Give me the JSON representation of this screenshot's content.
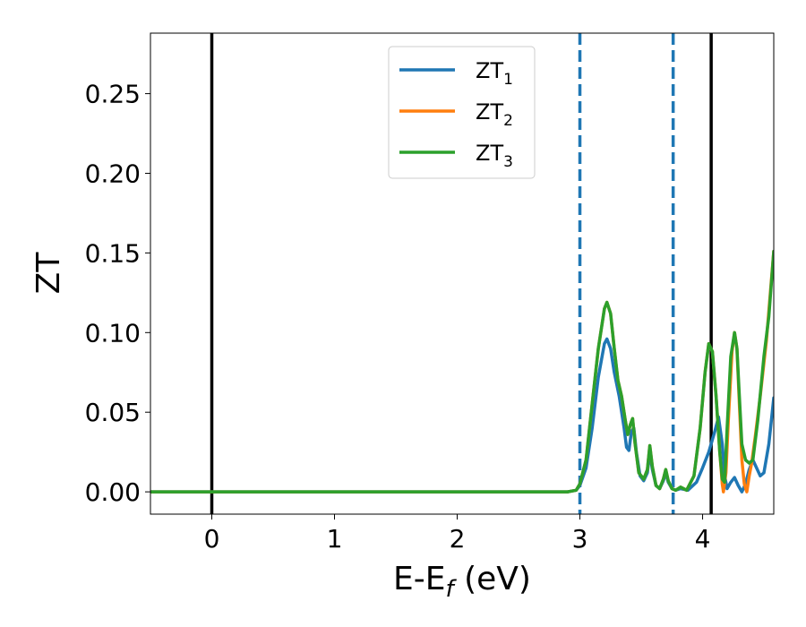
{
  "chart_data": {
    "type": "line",
    "xlabel": "E-E",
    "xlabel_sub": "f",
    "xlabel_unit": " (eV)",
    "ylabel": "ZT",
    "xlim": [
      -0.5,
      4.58
    ],
    "ylim": [
      -0.014,
      0.288
    ],
    "xticks": [
      0,
      1,
      2,
      3,
      4
    ],
    "xtick_labels": [
      "0",
      "1",
      "2",
      "3",
      "4"
    ],
    "yticks": [
      0.0,
      0.05,
      0.1,
      0.15,
      0.2,
      0.25
    ],
    "ytick_labels": [
      "0.00",
      "0.05",
      "0.10",
      "0.15",
      "0.20",
      "0.25"
    ],
    "grid": false,
    "legend_placement": "upper center",
    "vlines": [
      {
        "x": 0.0,
        "style": "solid",
        "color": "#000000"
      },
      {
        "x": 4.07,
        "style": "solid",
        "color": "#000000"
      },
      {
        "x": 3.0,
        "style": "dashed",
        "color": "#1f77b4"
      },
      {
        "x": 3.76,
        "style": "dashed",
        "color": "#1f77b4"
      }
    ],
    "series": [
      {
        "name": "ZT",
        "name_sub": "1",
        "color": "#1f77b4",
        "points": [
          [
            -0.5,
            0
          ],
          [
            2.9,
            0
          ],
          [
            2.97,
            0.001
          ],
          [
            3.0,
            0.004
          ],
          [
            3.05,
            0.015
          ],
          [
            3.1,
            0.04
          ],
          [
            3.15,
            0.072
          ],
          [
            3.2,
            0.093
          ],
          [
            3.22,
            0.096
          ],
          [
            3.25,
            0.09
          ],
          [
            3.28,
            0.075
          ],
          [
            3.32,
            0.06
          ],
          [
            3.36,
            0.04
          ],
          [
            3.38,
            0.028
          ],
          [
            3.4,
            0.026
          ],
          [
            3.42,
            0.038
          ],
          [
            3.44,
            0.04
          ],
          [
            3.46,
            0.025
          ],
          [
            3.49,
            0.01
          ],
          [
            3.52,
            0.007
          ],
          [
            3.55,
            0.012
          ],
          [
            3.57,
            0.025
          ],
          [
            3.59,
            0.014
          ],
          [
            3.62,
            0.004
          ],
          [
            3.65,
            0.002
          ],
          [
            3.68,
            0.007
          ],
          [
            3.7,
            0.012
          ],
          [
            3.72,
            0.006
          ],
          [
            3.75,
            0.002
          ],
          [
            3.78,
            0.001
          ],
          [
            3.82,
            0.002
          ],
          [
            3.88,
            0.001
          ],
          [
            3.95,
            0.006
          ],
          [
            4.0,
            0.015
          ],
          [
            4.05,
            0.025
          ],
          [
            4.1,
            0.038
          ],
          [
            4.13,
            0.047
          ],
          [
            4.16,
            0.03
          ],
          [
            4.18,
            0.01
          ],
          [
            4.2,
            0.002
          ],
          [
            4.23,
            0.006
          ],
          [
            4.26,
            0.009
          ],
          [
            4.29,
            0.004
          ],
          [
            4.32,
            0.0
          ],
          [
            4.35,
            0.005
          ],
          [
            4.38,
            0.014
          ],
          [
            4.41,
            0.02
          ],
          [
            4.44,
            0.015
          ],
          [
            4.47,
            0.01
          ],
          [
            4.5,
            0.012
          ],
          [
            4.54,
            0.03
          ],
          [
            4.58,
            0.059
          ]
        ]
      },
      {
        "name": "ZT",
        "name_sub": "2",
        "color": "#ff7f0e",
        "points": [
          [
            -0.5,
            0
          ],
          [
            2.9,
            0
          ],
          [
            2.97,
            0.001
          ],
          [
            3.0,
            0.005
          ],
          [
            3.05,
            0.02
          ],
          [
            3.1,
            0.055
          ],
          [
            3.15,
            0.09
          ],
          [
            3.2,
            0.115
          ],
          [
            3.22,
            0.119
          ],
          [
            3.25,
            0.112
          ],
          [
            3.28,
            0.09
          ],
          [
            3.31,
            0.07
          ],
          [
            3.34,
            0.06
          ],
          [
            3.37,
            0.045
          ],
          [
            3.39,
            0.036
          ],
          [
            3.41,
            0.042
          ],
          [
            3.43,
            0.046
          ],
          [
            3.45,
            0.03
          ],
          [
            3.48,
            0.012
          ],
          [
            3.52,
            0.008
          ],
          [
            3.55,
            0.014
          ],
          [
            3.57,
            0.029
          ],
          [
            3.59,
            0.016
          ],
          [
            3.62,
            0.004
          ],
          [
            3.65,
            0.002
          ],
          [
            3.68,
            0.008
          ],
          [
            3.7,
            0.014
          ],
          [
            3.72,
            0.007
          ],
          [
            3.75,
            0.002
          ],
          [
            3.78,
            0.001
          ],
          [
            3.82,
            0.003
          ],
          [
            3.87,
            0.001
          ],
          [
            3.93,
            0.01
          ],
          [
            3.98,
            0.04
          ],
          [
            4.02,
            0.075
          ],
          [
            4.05,
            0.093
          ],
          [
            4.08,
            0.088
          ],
          [
            4.11,
            0.06
          ],
          [
            4.14,
            0.025
          ],
          [
            4.16,
            0.005
          ],
          [
            4.17,
            0.0
          ],
          [
            4.19,
            0.012
          ],
          [
            4.21,
            0.045
          ],
          [
            4.24,
            0.088
          ],
          [
            4.26,
            0.1
          ],
          [
            4.28,
            0.09
          ],
          [
            4.3,
            0.055
          ],
          [
            4.32,
            0.02
          ],
          [
            4.34,
            0.005
          ],
          [
            4.36,
            0.0
          ],
          [
            4.38,
            0.01
          ],
          [
            4.4,
            0.018
          ],
          [
            4.43,
            0.035
          ],
          [
            4.47,
            0.06
          ],
          [
            4.52,
            0.095
          ],
          [
            4.58,
            0.151
          ]
        ]
      },
      {
        "name": "ZT",
        "name_sub": "3",
        "color": "#2ca02c",
        "points": [
          [
            -0.5,
            0
          ],
          [
            2.9,
            0
          ],
          [
            2.97,
            0.001
          ],
          [
            3.0,
            0.005
          ],
          [
            3.05,
            0.02
          ],
          [
            3.1,
            0.055
          ],
          [
            3.15,
            0.09
          ],
          [
            3.2,
            0.115
          ],
          [
            3.22,
            0.119
          ],
          [
            3.25,
            0.112
          ],
          [
            3.28,
            0.09
          ],
          [
            3.31,
            0.07
          ],
          [
            3.34,
            0.06
          ],
          [
            3.37,
            0.045
          ],
          [
            3.39,
            0.036
          ],
          [
            3.41,
            0.042
          ],
          [
            3.43,
            0.046
          ],
          [
            3.45,
            0.03
          ],
          [
            3.48,
            0.012
          ],
          [
            3.52,
            0.008
          ],
          [
            3.55,
            0.014
          ],
          [
            3.57,
            0.029
          ],
          [
            3.59,
            0.016
          ],
          [
            3.62,
            0.004
          ],
          [
            3.65,
            0.002
          ],
          [
            3.68,
            0.008
          ],
          [
            3.7,
            0.014
          ],
          [
            3.72,
            0.007
          ],
          [
            3.75,
            0.002
          ],
          [
            3.78,
            0.001
          ],
          [
            3.82,
            0.003
          ],
          [
            3.87,
            0.001
          ],
          [
            3.93,
            0.01
          ],
          [
            3.98,
            0.04
          ],
          [
            4.02,
            0.075
          ],
          [
            4.05,
            0.093
          ],
          [
            4.08,
            0.088
          ],
          [
            4.11,
            0.06
          ],
          [
            4.14,
            0.025
          ],
          [
            4.16,
            0.008
          ],
          [
            4.18,
            0.006
          ],
          [
            4.2,
            0.04
          ],
          [
            4.23,
            0.085
          ],
          [
            4.26,
            0.1
          ],
          [
            4.28,
            0.09
          ],
          [
            4.3,
            0.06
          ],
          [
            4.32,
            0.03
          ],
          [
            4.35,
            0.02
          ],
          [
            4.38,
            0.018
          ],
          [
            4.41,
            0.02
          ],
          [
            4.45,
            0.045
          ],
          [
            4.5,
            0.085
          ],
          [
            4.54,
            0.11
          ],
          [
            4.58,
            0.151
          ]
        ]
      }
    ]
  }
}
